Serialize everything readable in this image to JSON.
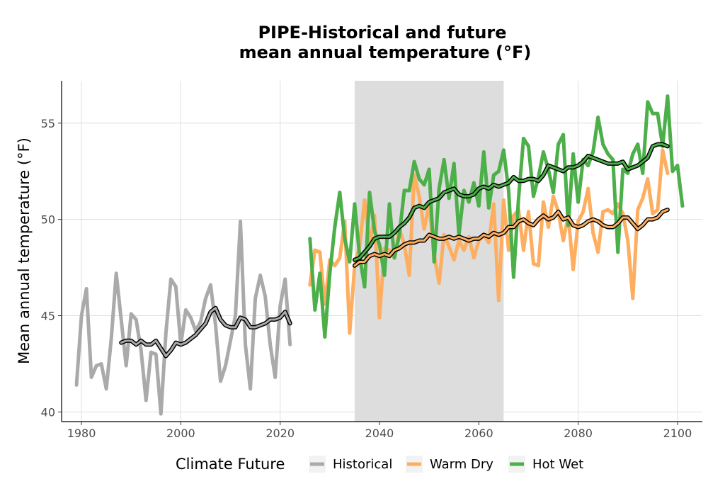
{
  "chart_data": {
    "type": "line",
    "title": [
      "PIPE-Historical and future",
      "mean annual temperature (°F)"
    ],
    "xlabel": "",
    "ylabel": "Mean annual temperature (°F)",
    "xlim": [
      1976,
      2105
    ],
    "ylim": [
      39.5,
      57.2
    ],
    "x_ticks": [
      1980,
      2000,
      2020,
      2040,
      2060,
      2080,
      2100
    ],
    "y_ticks": [
      40,
      45,
      50,
      55
    ],
    "grid": true,
    "shaded_period": [
      2035,
      2065
    ],
    "legend": {
      "title": "Climate Future",
      "position": "bottom"
    },
    "series": [
      {
        "name": "Historical",
        "color": "#aaaaaa",
        "x_start": 1979,
        "values": [
          41.4,
          45.0,
          46.4,
          41.8,
          42.4,
          42.5,
          41.2,
          43.8,
          47.2,
          44.8,
          42.4,
          45.1,
          44.8,
          43.2,
          40.6,
          43.1,
          43.0,
          39.9,
          44.1,
          46.9,
          46.5,
          43.5,
          45.3,
          44.9,
          44.2,
          44.7,
          45.9,
          46.6,
          44.5,
          41.6,
          42.4,
          43.7,
          45.0,
          49.9,
          43.5,
          41.2,
          45.9,
          47.1,
          46.0,
          43.5,
          41.8,
          45.5,
          46.9,
          43.5
        ],
        "smooth_x_start": 1988,
        "smooth": [
          43.6,
          43.7,
          43.7,
          43.5,
          43.7,
          43.5,
          43.5,
          43.7,
          43.3,
          42.9,
          43.2,
          43.6,
          43.5,
          43.6,
          43.8,
          44.0,
          44.3,
          44.6,
          45.2,
          45.4,
          44.8,
          44.5,
          44.4,
          44.4,
          44.9,
          44.8,
          44.4,
          44.4,
          44.5,
          44.6,
          44.8,
          44.8,
          44.9,
          45.2,
          44.6
        ]
      },
      {
        "name": "Warm Dry",
        "color": "#fdae61",
        "x_start": 2026,
        "values": [
          46.6,
          48.4,
          48.3,
          45.6,
          47.9,
          47.6,
          48.0,
          49.9,
          44.1,
          47.6,
          48.6,
          51.0,
          48.7,
          50.2,
          44.9,
          48.5,
          48.4,
          48.0,
          49.5,
          48.7,
          47.1,
          52.3,
          51.2,
          49.5,
          50.8,
          48.2,
          46.7,
          49.2,
          48.6,
          47.9,
          48.9,
          48.4,
          49.1,
          48.0,
          48.9,
          49.2,
          48.8,
          50.8,
          45.8,
          51.0,
          48.4,
          50.2,
          50.5,
          48.4,
          50.4,
          47.7,
          47.6,
          50.9,
          49.6,
          51.2,
          50.4,
          48.9,
          50.2,
          47.4,
          49.9,
          50.4,
          51.6,
          49.3,
          48.3,
          50.4,
          50.5,
          50.3,
          50.8,
          50.3,
          48.9,
          45.9,
          50.5,
          51.1,
          52.1,
          50.3,
          50.5,
          53.6,
          52.4
        ],
        "smooth_x_start": 2035,
        "smooth": [
          47.6,
          47.8,
          47.8,
          48.1,
          48.2,
          48.1,
          48.2,
          48.1,
          48.4,
          48.5,
          48.7,
          48.8,
          48.8,
          48.9,
          48.9,
          49.2,
          49.1,
          49.0,
          49.0,
          49.1,
          49.0,
          49.1,
          49.0,
          48.9,
          49.0,
          49.0,
          49.2,
          49.1,
          49.3,
          49.2,
          49.3,
          49.6,
          49.6,
          49.9,
          50.0,
          49.8,
          49.7,
          50.0,
          50.2,
          50.0,
          50.1,
          50.4,
          50.0,
          50.1,
          49.7,
          49.6,
          49.7,
          49.9,
          50.0,
          49.9,
          49.7,
          49.6,
          49.6,
          49.8,
          50.1,
          50.1,
          49.8,
          49.5,
          49.7,
          50.0,
          50.0,
          50.1,
          50.4,
          50.5
        ]
      },
      {
        "name": "Hot Wet",
        "color": "#4daf4a",
        "x_start": 2026,
        "values": [
          49.0,
          45.3,
          47.2,
          43.9,
          47.2,
          49.6,
          51.4,
          49.0,
          47.8,
          50.8,
          48.1,
          46.5,
          51.4,
          49.4,
          48.7,
          47.1,
          50.8,
          48.0,
          49.2,
          51.5,
          51.5,
          53.0,
          52.1,
          51.8,
          52.6,
          47.8,
          51.6,
          53.1,
          51.1,
          52.9,
          49.2,
          51.5,
          50.9,
          51.9,
          50.7,
          53.5,
          50.6,
          52.3,
          52.5,
          53.6,
          51.5,
          47.0,
          51.1,
          54.2,
          53.8,
          51.2,
          52.2,
          53.5,
          52.6,
          51.4,
          53.9,
          54.4,
          49.7,
          53.4,
          50.9,
          53.1,
          52.8,
          53.5,
          55.3,
          53.9,
          53.4,
          53.1,
          48.3,
          52.6,
          52.4,
          53.4,
          53.9,
          52.4,
          56.1,
          55.5,
          55.5,
          53.8,
          56.4,
          52.5,
          52.8,
          50.7
        ],
        "smooth_x_start": 2035,
        "smooth": [
          47.9,
          48.0,
          48.3,
          48.6,
          49.0,
          49.1,
          49.1,
          49.1,
          49.3,
          49.6,
          49.8,
          50.1,
          50.6,
          50.7,
          50.6,
          50.9,
          51.0,
          51.1,
          51.4,
          51.5,
          51.6,
          51.3,
          51.2,
          51.2,
          51.3,
          51.6,
          51.7,
          51.6,
          51.8,
          51.7,
          51.8,
          51.9,
          52.2,
          52.0,
          52.0,
          52.1,
          52.1,
          52.0,
          52.3,
          52.8,
          52.7,
          52.6,
          52.5,
          52.7,
          52.7,
          52.8,
          53.0,
          53.3,
          53.2,
          53.1,
          53.0,
          52.9,
          52.9,
          52.9,
          53.0,
          52.6,
          52.7,
          52.8,
          53.0,
          53.2,
          53.8,
          53.9,
          53.9,
          53.8
        ]
      }
    ]
  }
}
